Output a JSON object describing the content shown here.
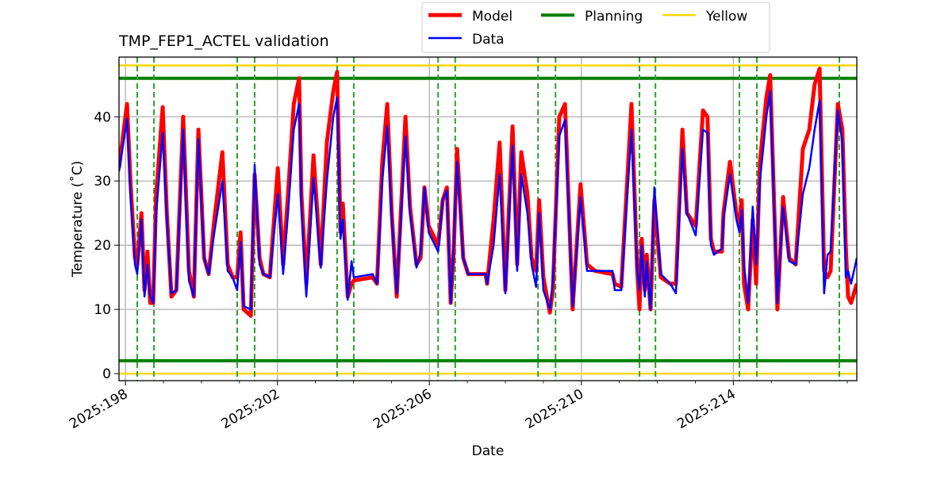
{
  "chart_data": {
    "type": "line",
    "title": "TMP_FEP1_ACTEL validation",
    "xlabel": "Date",
    "ylabel": "Temperature ($^\\circ$C)",
    "ylabel_display": "Temperature (˚C)",
    "xlim": [
      197.83,
      217.25
    ],
    "ylim": [
      -1.1,
      49.3
    ],
    "grid": true,
    "legend_placement": "top-center-outside",
    "x_ticks": [
      198,
      202,
      206,
      210,
      214
    ],
    "x_tick_labels": [
      "2025:198",
      "2025:202",
      "2025:206",
      "2025:210",
      "2025:214"
    ],
    "x_minor_ticks": [
      199,
      200,
      201,
      203,
      204,
      205,
      207,
      208,
      209,
      211,
      212,
      213,
      215,
      216,
      217
    ],
    "y_ticks": [
      0,
      10,
      20,
      30,
      40
    ],
    "y_tick_labels": [
      "0",
      "10",
      "20",
      "30",
      "40"
    ],
    "legend": [
      {
        "label": "Model",
        "color": "#ff0000"
      },
      {
        "label": "Data",
        "color": "#0000ff"
      },
      {
        "label": "Planning",
        "color": "#008000"
      },
      {
        "label": "Yellow",
        "color": "#ffd700"
      }
    ],
    "planning_limits": [
      2,
      46
    ],
    "yellow_limits": [
      0,
      48
    ],
    "event_lines": [
      198.31,
      198.75,
      200.94,
      201.4,
      203.57,
      204.01,
      206.23,
      206.68,
      208.86,
      209.32,
      211.53,
      211.95,
      214.16,
      214.62,
      216.79
    ],
    "x": [
      197.83,
      198.04,
      198.13,
      198.25,
      198.31,
      198.42,
      198.5,
      198.58,
      198.65,
      198.73,
      198.81,
      198.98,
      199.09,
      199.21,
      199.34,
      199.52,
      199.67,
      199.8,
      199.92,
      200.07,
      200.19,
      200.34,
      200.55,
      200.69,
      200.82,
      200.94,
      201.03,
      201.11,
      201.3,
      201.4,
      201.53,
      201.63,
      201.8,
      202.01,
      202.15,
      202.28,
      202.43,
      202.57,
      202.63,
      202.76,
      202.95,
      203.14,
      203.3,
      203.47,
      203.57,
      203.66,
      203.72,
      203.85,
      203.95,
      204.01,
      204.51,
      204.62,
      204.76,
      204.89,
      205.01,
      205.14,
      205.37,
      205.49,
      205.66,
      205.77,
      205.87,
      205.98,
      206.23,
      206.35,
      206.46,
      206.56,
      206.64,
      206.73,
      206.89,
      207.02,
      207.48,
      207.52,
      207.69,
      207.85,
      208.0,
      208.19,
      208.31,
      208.42,
      208.58,
      208.69,
      208.81,
      208.89,
      209.0,
      209.17,
      209.25,
      209.42,
      209.57,
      209.77,
      209.98,
      210.15,
      210.36,
      210.82,
      210.88,
      211.05,
      211.32,
      211.47,
      211.53,
      211.59,
      211.67,
      211.72,
      211.82,
      211.92,
      212.09,
      212.34,
      212.49,
      212.66,
      212.78,
      213.01,
      213.2,
      213.32,
      213.41,
      213.49,
      213.7,
      213.74,
      213.91,
      214.08,
      214.16,
      214.22,
      214.28,
      214.39,
      214.51,
      214.6,
      214.7,
      214.87,
      214.97,
      215.16,
      215.31,
      215.47,
      215.64,
      215.83,
      216.0,
      216.14,
      216.27,
      216.39,
      216.48,
      216.56,
      216.75,
      216.87,
      216.96,
      217.02,
      217.1,
      217.25
    ],
    "series": [
      {
        "name": "Model",
        "color": "#ff0000",
        "values": [
          32,
          42,
          30,
          18,
          17,
          25,
          13,
          19,
          11,
          11,
          28,
          41.5,
          25,
          12,
          13,
          40,
          16,
          12,
          38,
          18,
          15.5,
          24,
          34.5,
          17,
          15,
          15,
          22,
          10,
          9,
          31,
          18,
          15.5,
          15,
          32,
          17,
          28,
          42,
          46,
          28,
          14,
          34,
          17,
          36,
          44,
          47,
          22,
          26.5,
          12,
          14,
          14.5,
          15,
          14,
          33,
          42,
          25,
          12,
          40,
          26,
          17,
          18,
          29,
          23,
          20,
          27,
          29,
          11,
          19,
          35,
          18,
          15.5,
          15.5,
          14,
          24,
          36,
          13,
          38.5,
          17,
          34.5,
          28,
          18,
          16,
          27,
          15,
          9.5,
          13,
          40,
          42,
          10,
          29.5,
          17,
          16,
          15.5,
          14,
          13.5,
          42,
          16,
          10,
          21,
          13,
          18.5,
          10,
          27,
          15,
          14,
          14,
          38,
          25,
          23,
          41,
          40,
          21,
          19,
          19,
          25,
          33,
          25,
          23,
          27,
          14,
          10,
          24,
          14,
          33,
          43,
          46.5,
          10,
          27.5,
          18,
          17,
          35,
          38,
          45,
          47.5,
          16,
          15,
          16,
          42,
          38,
          20,
          12,
          11,
          14
        ]
      },
      {
        "name": "Data",
        "color": "#0000ff",
        "values": [
          31.5,
          39.7,
          28,
          17,
          15.5,
          24,
          12,
          17,
          12,
          11,
          25,
          37.5,
          24,
          12.5,
          13,
          38,
          14.5,
          12,
          36.5,
          18,
          15.5,
          22,
          30,
          16,
          15,
          13,
          20.5,
          10.5,
          10,
          32.5,
          17,
          15.5,
          15,
          28,
          15.5,
          25,
          38,
          42,
          26,
          12,
          30.5,
          16.5,
          30,
          40,
          43,
          21,
          24,
          11.5,
          17.5,
          15,
          15.5,
          14,
          30,
          38.5,
          24,
          12.5,
          37,
          25,
          16.5,
          19,
          29,
          22,
          19,
          27,
          28.5,
          11,
          20,
          33,
          18,
          15.5,
          15.5,
          14,
          20,
          31,
          12.5,
          35.5,
          16,
          31,
          25,
          17,
          13.5,
          25,
          13,
          10,
          14.5,
          37,
          39.5,
          10.5,
          27.5,
          16,
          16,
          16,
          13,
          13,
          38,
          16,
          13,
          20,
          12,
          17.5,
          10,
          29,
          15.5,
          14,
          12.5,
          35,
          25,
          21.5,
          38,
          37.5,
          20,
          18.5,
          19.5,
          24,
          31,
          24,
          22,
          25.5,
          17,
          11,
          26,
          17,
          30,
          40,
          44,
          11,
          26,
          17.5,
          17,
          28,
          32,
          38,
          42.5,
          12.5,
          18.5,
          19,
          41,
          36,
          15,
          16,
          14,
          18
        ]
      }
    ]
  }
}
